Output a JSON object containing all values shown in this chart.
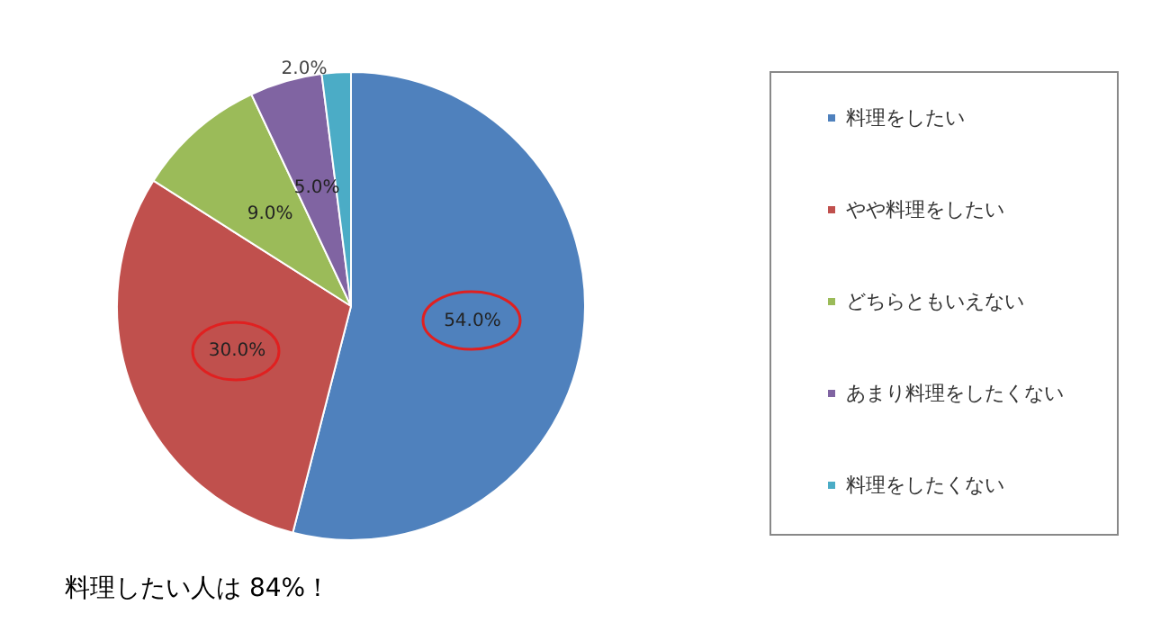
{
  "chart_data": {
    "type": "pie",
    "categories": [
      "料理をしたい",
      "やや料理をしたい",
      "どちらともいえない",
      "あまり料理をしたくない",
      "料理をしたくない"
    ],
    "values": [
      54,
      30,
      9,
      5,
      2
    ],
    "value_labels": [
      "54.0%",
      "30.0%",
      "9.0%",
      "5.0%",
      "2.0%"
    ],
    "colors": [
      "#4f81bd",
      "#c0504d",
      "#9bbb59",
      "#8064a2",
      "#4bacc6"
    ],
    "legend": "right",
    "annotations": [
      "料理したい人は 84%！"
    ]
  }
}
